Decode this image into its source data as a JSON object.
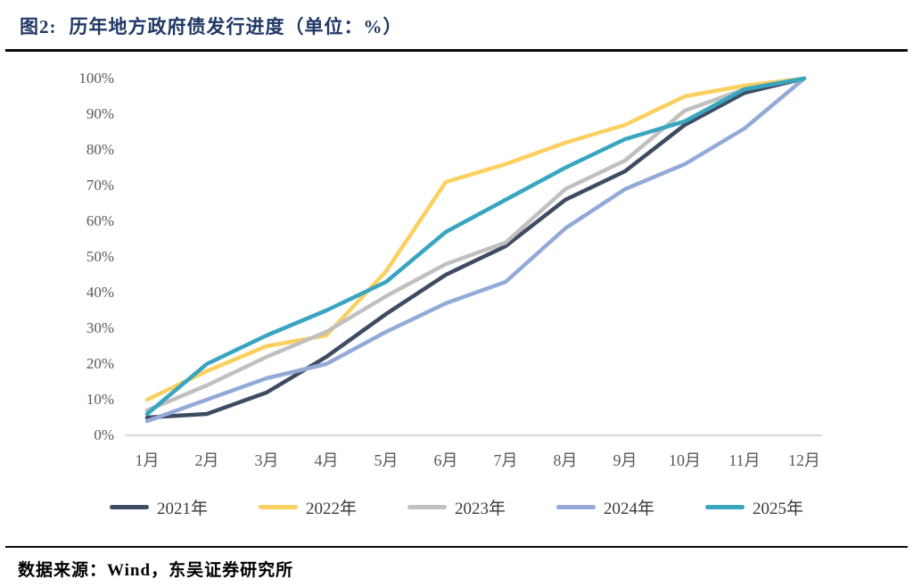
{
  "page": {
    "title_prefix": "图2:",
    "title_text": "历年地方政府债发行进度（单位：%）",
    "source_note": "数据来源：Wind，东吴证券研究所"
  },
  "colors": {
    "title_text": "#1f3864",
    "axis_label": "#595959",
    "axis_line": "#d9d9d9",
    "divider_rule": "#0a0a0a"
  },
  "chart_data": {
    "type": "line",
    "title": "历年地方政府债发行进度（单位：%）",
    "xlabel": "",
    "ylabel": "",
    "ylim": [
      0,
      100
    ],
    "grid": false,
    "legend_position": "bottom",
    "categories": [
      "1月",
      "2月",
      "3月",
      "4月",
      "5月",
      "6月",
      "7月",
      "8月",
      "9月",
      "10月",
      "11月",
      "12月"
    ],
    "y_tick_labels": [
      "0%",
      "10%",
      "20%",
      "30%",
      "40%",
      "50%",
      "60%",
      "70%",
      "80%",
      "90%",
      "100%"
    ],
    "series": [
      {
        "name": "2021年",
        "color": "#3e4c63",
        "values": [
          5,
          6,
          12,
          22,
          34,
          45,
          53,
          66,
          74,
          87,
          96,
          100
        ]
      },
      {
        "name": "2022年",
        "color": "#fbd05f",
        "values": [
          10,
          18,
          25,
          28,
          46,
          71,
          76,
          82,
          87,
          95,
          98,
          100
        ]
      },
      {
        "name": "2023年",
        "color": "#c1c0c0",
        "values": [
          7,
          14,
          22,
          29,
          39,
          48,
          54,
          69,
          77,
          91,
          97,
          100
        ]
      },
      {
        "name": "2024年",
        "color": "#93aad8",
        "values": [
          4,
          10,
          16,
          20,
          29,
          37,
          43,
          58,
          69,
          76,
          86,
          100
        ]
      },
      {
        "name": "2025年",
        "color": "#39a5bf",
        "values": [
          6,
          20,
          28,
          35,
          43,
          57,
          66,
          75,
          83,
          88,
          97,
          100
        ]
      }
    ]
  }
}
